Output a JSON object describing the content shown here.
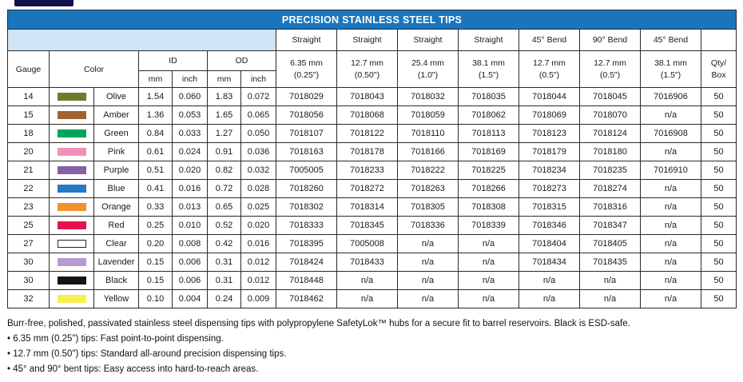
{
  "title": "PRECISION STAINLESS STEEL TIPS",
  "colors": {
    "title_bg": "#1b75bc",
    "corner_bg": "#cfe4f4"
  },
  "table": {
    "header": {
      "gauge": "Gauge",
      "color": "Color",
      "id": "ID",
      "od": "OD",
      "mm": "mm",
      "inch": "inch",
      "qty_line1": "Qty/",
      "qty_line2": "Box",
      "tip_columns": [
        {
          "style": "Straight",
          "size": "6.35 mm",
          "fraction": "(0.25\")"
        },
        {
          "style": "Straight",
          "size": "12.7 mm",
          "fraction": "(0.50\")"
        },
        {
          "style": "Straight",
          "size": "25.4 mm",
          "fraction": "(1.0\")"
        },
        {
          "style": "Straight",
          "size": "38.1 mm",
          "fraction": "(1.5\")"
        },
        {
          "style": "45° Bend",
          "size": "12.7 mm",
          "fraction": "(0.5\")"
        },
        {
          "style": "90° Bend",
          "size": "12.7 mm",
          "fraction": "(0.5\")"
        },
        {
          "style": "45° Bend",
          "size": "38.1 mm",
          "fraction": "(1.5\")"
        }
      ]
    },
    "rows": [
      {
        "gauge": "14",
        "color_name": "Olive",
        "swatch": "#6e7b2a",
        "outline": false,
        "id_mm": "1.54",
        "id_inch": "0.060",
        "od_mm": "1.83",
        "od_inch": "0.072",
        "parts": [
          "7018029",
          "7018043",
          "7018032",
          "7018035",
          "7018044",
          "7018045",
          "7016906"
        ],
        "qty": "50"
      },
      {
        "gauge": "15",
        "color_name": "Amber",
        "swatch": "#9e6430",
        "outline": false,
        "id_mm": "1.36",
        "id_inch": "0.053",
        "od_mm": "1.65",
        "od_inch": "0.065",
        "parts": [
          "7018056",
          "7018068",
          "7018059",
          "7018062",
          "7018069",
          "7018070",
          "n/a"
        ],
        "qty": "50"
      },
      {
        "gauge": "18",
        "color_name": "Green",
        "swatch": "#00a45a",
        "outline": false,
        "id_mm": "0.84",
        "id_inch": "0.033",
        "od_mm": "1.27",
        "od_inch": "0.050",
        "parts": [
          "7018107",
          "7018122",
          "7018110",
          "7018113",
          "7018123",
          "7018124",
          "7016908"
        ],
        "qty": "50"
      },
      {
        "gauge": "20",
        "color_name": "Pink",
        "swatch": "#f090b8",
        "outline": false,
        "id_mm": "0.61",
        "id_inch": "0.024",
        "od_mm": "0.91",
        "od_inch": "0.036",
        "parts": [
          "7018163",
          "7018178",
          "7018166",
          "7018169",
          "7018179",
          "7018180",
          "n/a"
        ],
        "qty": "50"
      },
      {
        "gauge": "21",
        "color_name": "Purple",
        "swatch": "#8660a8",
        "outline": false,
        "id_mm": "0.51",
        "id_inch": "0.020",
        "od_mm": "0.82",
        "od_inch": "0.032",
        "parts": [
          "7005005",
          "7018233",
          "7018222",
          "7018225",
          "7018234",
          "7018235",
          "7016910"
        ],
        "qty": "50"
      },
      {
        "gauge": "22",
        "color_name": "Blue",
        "swatch": "#2779c4",
        "outline": false,
        "id_mm": "0.41",
        "id_inch": "0.016",
        "od_mm": "0.72",
        "od_inch": "0.028",
        "parts": [
          "7018260",
          "7018272",
          "7018263",
          "7018266",
          "7018273",
          "7018274",
          "n/a"
        ],
        "qty": "50"
      },
      {
        "gauge": "23",
        "color_name": "Orange",
        "swatch": "#f29030",
        "outline": false,
        "id_mm": "0.33",
        "id_inch": "0.013",
        "od_mm": "0.65",
        "od_inch": "0.025",
        "parts": [
          "7018302",
          "7018314",
          "7018305",
          "7018308",
          "7018315",
          "7018316",
          "n/a"
        ],
        "qty": "50"
      },
      {
        "gauge": "25",
        "color_name": "Red",
        "swatch": "#e8114b",
        "outline": false,
        "id_mm": "0.25",
        "id_inch": "0.010",
        "od_mm": "0.52",
        "od_inch": "0.020",
        "parts": [
          "7018333",
          "7018345",
          "7018336",
          "7018339",
          "7018346",
          "7018347",
          "n/a"
        ],
        "qty": "50"
      },
      {
        "gauge": "27",
        "color_name": "Clear",
        "swatch": "#ffffff",
        "outline": true,
        "id_mm": "0.20",
        "id_inch": "0.008",
        "od_mm": "0.42",
        "od_inch": "0.016",
        "parts": [
          "7018395",
          "7005008",
          "n/a",
          "n/a",
          "7018404",
          "7018405",
          "n/a"
        ],
        "qty": "50"
      },
      {
        "gauge": "30",
        "color_name": "Lavender",
        "swatch": "#b79bca",
        "outline": false,
        "id_mm": "0.15",
        "id_inch": "0.006",
        "od_mm": "0.31",
        "od_inch": "0.012",
        "parts": [
          "7018424",
          "7018433",
          "n/a",
          "n/a",
          "7018434",
          "7018435",
          "n/a"
        ],
        "qty": "50"
      },
      {
        "gauge": "30",
        "color_name": "Black",
        "swatch": "#141414",
        "outline": false,
        "id_mm": "0.15",
        "id_inch": "0.006",
        "od_mm": "0.31",
        "od_inch": "0.012",
        "parts": [
          "7018448",
          "n/a",
          "n/a",
          "n/a",
          "n/a",
          "n/a",
          "n/a"
        ],
        "qty": "50"
      },
      {
        "gauge": "32",
        "color_name": "Yellow",
        "swatch": "#f9f04f",
        "outline": false,
        "id_mm": "0.10",
        "id_inch": "0.004",
        "od_mm": "0.24",
        "od_inch": "0.009",
        "parts": [
          "7018462",
          "n/a",
          "n/a",
          "n/a",
          "n/a",
          "n/a",
          "n/a"
        ],
        "qty": "50"
      }
    ]
  },
  "footer": {
    "intro": "Burr-free, polished, passivated stainless steel dispensing tips with polypropylene SafetyLok™ hubs for a secure fit to barrel reservoirs. Black is ESD-safe.",
    "bullets": [
      "• 6.35 mm (0.25\") tips: Fast point-to-point dispensing.",
      "• 12.7 mm (0.50\") tips: Standard all-around precision dispensing tips.",
      "• 45° and 90° bent tips: Easy access into hard-to-reach areas."
    ]
  }
}
